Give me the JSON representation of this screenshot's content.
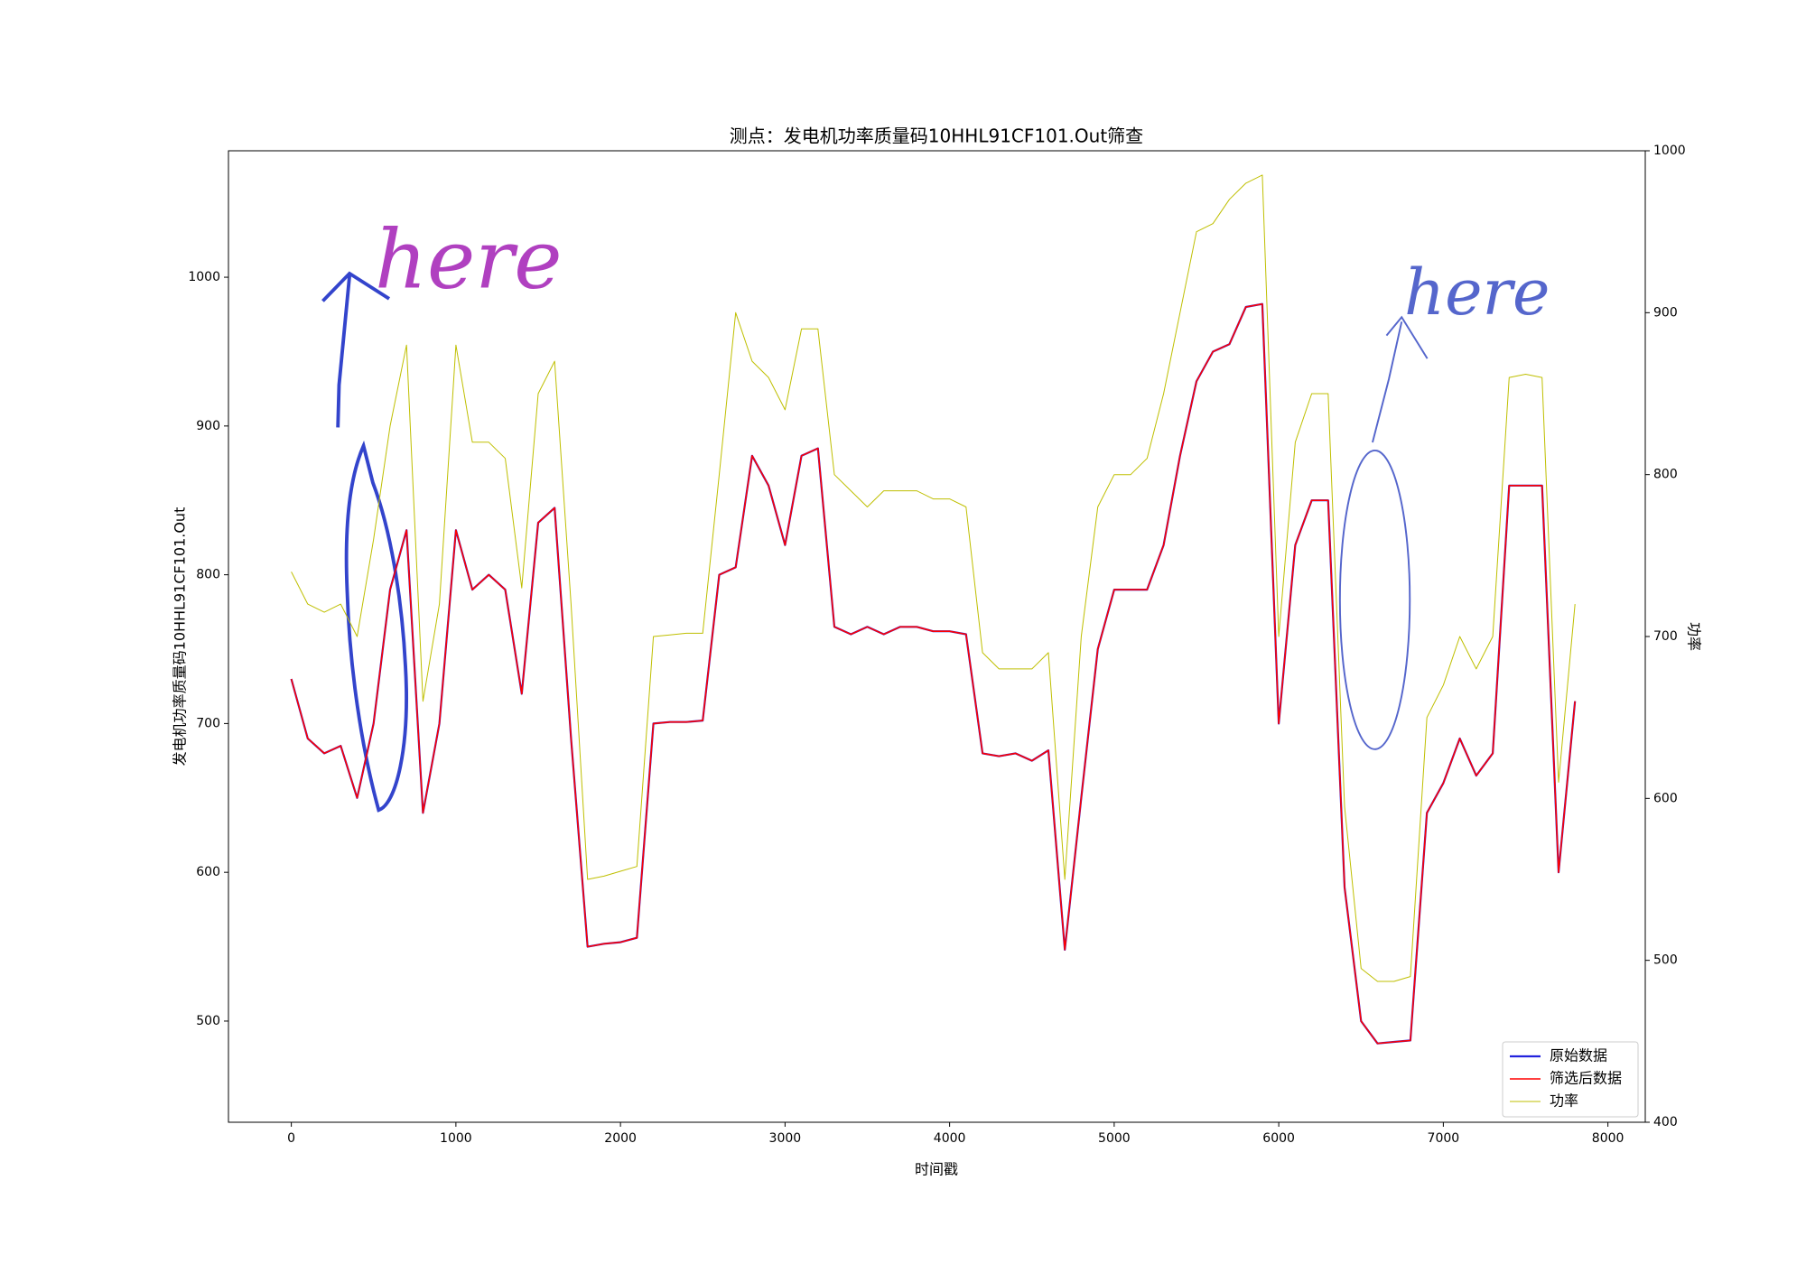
{
  "chart_data": {
    "type": "line",
    "title": "测点：发电机功率质量码10HHL91CF101.Out筛查",
    "xlabel": "时间戳",
    "ylabel": "发电机功率质量码10HHL91CF101.Out",
    "y2label": "功率",
    "x": [
      0,
      100,
      200,
      300,
      400,
      500,
      600,
      700,
      800,
      900,
      1000,
      1100,
      1200,
      1300,
      1400,
      1500,
      1600,
      1700,
      1800,
      1900,
      2000,
      2100,
      2200,
      2300,
      2400,
      2500,
      2600,
      2700,
      2800,
      2900,
      3000,
      3100,
      3200,
      3300,
      3400,
      3500,
      3600,
      3700,
      3800,
      3900,
      4000,
      4100,
      4200,
      4300,
      4400,
      4500,
      4600,
      4700,
      4800,
      4900,
      5000,
      5100,
      5200,
      5300,
      5400,
      5500,
      5600,
      5700,
      5800,
      5900,
      6000,
      6100,
      6200,
      6300,
      6400,
      6500,
      6600,
      6700,
      6800,
      6900,
      7000,
      7100,
      7200,
      7300,
      7400,
      7500,
      7600,
      7700,
      7800
    ],
    "series": [
      {
        "name": "原始数据",
        "color": "#2222dd",
        "width": 2.2,
        "values": [
          730,
          690,
          680,
          685,
          650,
          700,
          790,
          830,
          640,
          700,
          830,
          790,
          800,
          790,
          720,
          835,
          845,
          690,
          550,
          552,
          553,
          556,
          700,
          701,
          701,
          702,
          800,
          805,
          880,
          860,
          820,
          880,
          885,
          765,
          760,
          765,
          760,
          765,
          765,
          762,
          762,
          760,
          680,
          678,
          680,
          675,
          682,
          548,
          650,
          750,
          790,
          790,
          790,
          820,
          880,
          930,
          950,
          955,
          980,
          982,
          700,
          820,
          850,
          850,
          590,
          500,
          485,
          486,
          487,
          640,
          660,
          690,
          665,
          680,
          860,
          860,
          860,
          600,
          715
        ]
      },
      {
        "name": "筛选后数据",
        "color": "#ff0000",
        "width": 1.6,
        "values": [
          730,
          690,
          680,
          685,
          650,
          700,
          790,
          830,
          640,
          700,
          830,
          790,
          800,
          790,
          720,
          835,
          845,
          690,
          550,
          552,
          553,
          556,
          700,
          701,
          701,
          702,
          800,
          805,
          880,
          860,
          820,
          880,
          885,
          765,
          760,
          765,
          760,
          765,
          765,
          762,
          762,
          760,
          680,
          678,
          680,
          675,
          682,
          548,
          650,
          750,
          790,
          790,
          790,
          820,
          880,
          930,
          950,
          955,
          980,
          982,
          700,
          820,
          850,
          850,
          590,
          500,
          485,
          486,
          487,
          640,
          660,
          690,
          665,
          680,
          860,
          860,
          860,
          600,
          715
        ]
      },
      {
        "name": "功率",
        "color": "#bfbf00",
        "width": 1,
        "axis": "y2",
        "values": [
          740,
          720,
          715,
          720,
          700,
          760,
          830,
          880,
          660,
          720,
          880,
          820,
          820,
          810,
          730,
          850,
          870,
          720,
          550,
          552,
          555,
          558,
          700,
          701,
          702,
          702,
          800,
          900,
          870,
          860,
          840,
          890,
          890,
          800,
          790,
          780,
          790,
          790,
          790,
          785,
          785,
          780,
          690,
          680,
          680,
          680,
          690,
          550,
          700,
          780,
          800,
          800,
          810,
          850,
          900,
          950,
          955,
          970,
          980,
          985,
          700,
          820,
          850,
          850,
          595,
          495,
          487,
          487,
          490,
          650,
          670,
          700,
          680,
          700,
          860,
          862,
          860,
          610,
          720
        ]
      }
    ],
    "xlim": [
      -382,
      8227
    ],
    "xticks": [
      0,
      1000,
      2000,
      3000,
      4000,
      5000,
      6000,
      7000,
      8000
    ],
    "ylim": [
      432,
      1085
    ],
    "yticks": [
      500,
      600,
      700,
      800,
      900,
      1000
    ],
    "y2lim": [
      400,
      1000
    ],
    "y2ticks": [
      400,
      500,
      600,
      700,
      800,
      900,
      1000
    ],
    "legend": "lower right",
    "annotations": [
      {
        "text": "here",
        "color": "#b040c0"
      },
      {
        "text": "here",
        "color": "#5566cc"
      }
    ]
  }
}
